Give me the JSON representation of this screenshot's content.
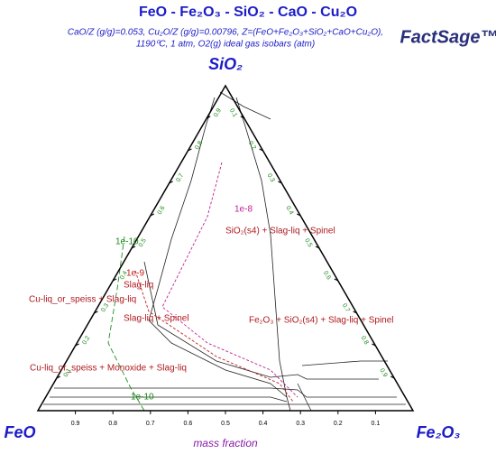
{
  "chart_data": {
    "type": "ternary",
    "title": "FeO - Fe₂O₃ - SiO₂ - CaO - Cu₂O",
    "subtitle": [
      "CaO/Z (g/g)=0.053, Cu₂O/Z (g/g)=0.00796, Z=(FeO+Fe₂O₃+SiO₂+CaO+Cu₂O),",
      "1190⁰C, 1 atm, O2(g) ideal gas isobars (atm)"
    ],
    "logo": "FactSage™",
    "vertices": {
      "top": "SiO₂",
      "left": "FeO",
      "right": "Fe₂O₃"
    },
    "xlabel": "mass fraction",
    "bticks": [
      0.9,
      0.8,
      0.7,
      0.6,
      0.5,
      0.4,
      0.3,
      0.2,
      0.1
    ],
    "lticks": [
      0.1,
      0.2,
      0.3,
      0.4,
      0.5,
      0.6,
      0.7,
      0.8,
      0.9
    ],
    "rticks": [
      0.1,
      0.2,
      0.3,
      0.4,
      0.5,
      0.6,
      0.7,
      0.8,
      0.9
    ],
    "regions": [
      "SiO₂(s4) + Slag-liq + Spinel",
      "Slag-liq",
      "Cu-liq_or_speiss + Slag-liq",
      "Slag-liq + Spinel",
      "Fe₂O₃ + SiO₂(s4) + Slag-liq + Spinel",
      "Cu-liq_or_speiss + Monoxide + Slag-liq"
    ],
    "isobar_labels": [
      "1e-8",
      "1e-10",
      "1e-9",
      "1e-10"
    ]
  }
}
